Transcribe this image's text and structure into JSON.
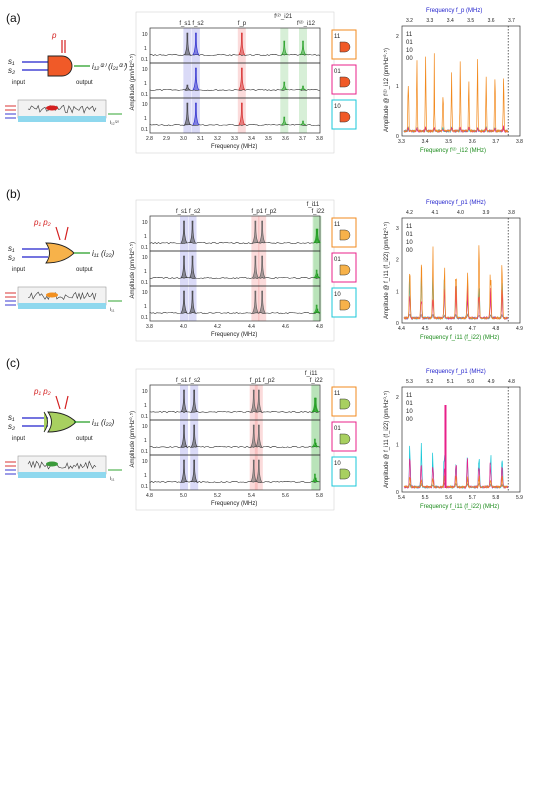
{
  "panels": [
    {
      "label": "(a)",
      "schematic": {
        "input_label": "input",
        "output_label": "output",
        "pump": "p",
        "signals": [
          "s₁",
          "s₂"
        ],
        "out_symbol": "i₁₂⁽²⁾ (i₂₁⁽²⁾)",
        "out_small": "i₁₂⁽²⁾"
      },
      "spectrum": {
        "ylabel": "Amplitude (pm/Hz⁰·⁵)",
        "xlabel": "Frequency (MHz)",
        "xticks": [
          "2.8",
          "2.9",
          "3.0",
          "3.1",
          "3.2",
          "3.3",
          "3.4",
          "3.5",
          "3.6",
          "3.7",
          "3.8"
        ],
        "top_labels": [
          "f_s1 f_s2",
          "f_p",
          "f⁽²⁾_i21",
          "f⁽²⁾_i12"
        ],
        "gate_codes": [
          "11",
          "01",
          "10"
        ]
      },
      "amp": {
        "top_title": "Frequency f_p (MHz)",
        "top_ticks": [
          "3.2",
          "3.3",
          "3.4",
          "3.5",
          "3.6",
          "3.7"
        ],
        "bottom_title": "Frequency f⁽²⁾_i12 (MHz)",
        "bottom_ticks": [
          "3.3",
          "3.4",
          "3.5",
          "3.6",
          "3.7",
          "3.8"
        ],
        "ylabel": "Amplitude @ f⁽²⁾_i12 (pm/Hz⁰·⁵)",
        "yticks": [
          "0",
          "1",
          "2"
        ],
        "legend": [
          "11",
          "01",
          "10",
          "00"
        ]
      }
    },
    {
      "label": "(b)",
      "schematic": {
        "input_label": "input",
        "output_label": "output",
        "pump": "p₁  p₂",
        "signals": [
          "s₁",
          "s₂"
        ],
        "out_symbol": "i₁₁ (i₂₂)",
        "out_small": "i₁₁"
      },
      "spectrum": {
        "ylabel": "Amplitude (pm/Hz⁰·⁵)",
        "xlabel": "Frequency (MHz)",
        "xticks": [
          "3.8",
          "4.0",
          "4.2",
          "4.4",
          "4.6",
          "4.8"
        ],
        "top_labels": [
          "f_s1 f_s2",
          "f_p1 f_p2",
          "f_i11",
          "f_i22"
        ],
        "gate_codes": [
          "11",
          "01",
          "10"
        ]
      },
      "amp": {
        "top_title": "Frequency f_p1 (MHz)",
        "top_ticks": [
          "4.2",
          "4.1",
          "4.0",
          "3.9",
          "3.8"
        ],
        "bottom_title": "Frequency f_i11 (f_i22) (MHz)",
        "bottom_ticks": [
          "4.4",
          "4.5",
          "4.6",
          "4.7",
          "4.8",
          "4.9"
        ],
        "ylabel": "Amplitude @ f_i11 (f_i22) (pm/Hz⁰·⁵)",
        "yticks": [
          "0",
          "1",
          "2",
          "3"
        ],
        "legend": [
          "11",
          "01",
          "10",
          "00"
        ]
      }
    },
    {
      "label": "(c)",
      "schematic": {
        "input_label": "input",
        "output_label": "output",
        "pump": "p₁  p₂",
        "signals": [
          "s₁",
          "s₂"
        ],
        "out_symbol": "i₁₁ (i₂₂)",
        "out_small": "i₁₁"
      },
      "spectrum": {
        "ylabel": "Amplitude (pm/Hz⁰·⁵)",
        "xlabel": "Frequency (MHz)",
        "xticks": [
          "4.8",
          "5.0",
          "5.2",
          "5.4",
          "5.6",
          "5.8"
        ],
        "top_labels": [
          "f_s1 f_s2",
          "f_p1 f_p2",
          "f_i11",
          "f_i22"
        ],
        "gate_codes": [
          "11",
          "01",
          "10"
        ]
      },
      "amp": {
        "top_title": "Frequency f_p1 (MHz)",
        "top_ticks": [
          "5.3",
          "5.2",
          "5.1",
          "5.0",
          "4.9",
          "4.8"
        ],
        "bottom_title": "Frequency f_i11 (f_i22) (MHz)",
        "bottom_ticks": [
          "5.4",
          "5.5",
          "5.6",
          "5.7",
          "5.8",
          "5.9"
        ],
        "ylabel": "Amplitude @ f_i11 (f_i22) (pm/Hz⁰·⁵)",
        "yticks": [
          "0",
          "1",
          "2"
        ],
        "legend": [
          "11",
          "01",
          "10",
          "00"
        ]
      }
    }
  ],
  "colors": {
    "c11": "#f28a1e",
    "c01": "#e8208a",
    "c10": "#18c7d8",
    "c00": "#888888",
    "blue": "#2222cc",
    "red": "#d42020",
    "green": "#1a9a1a"
  }
}
